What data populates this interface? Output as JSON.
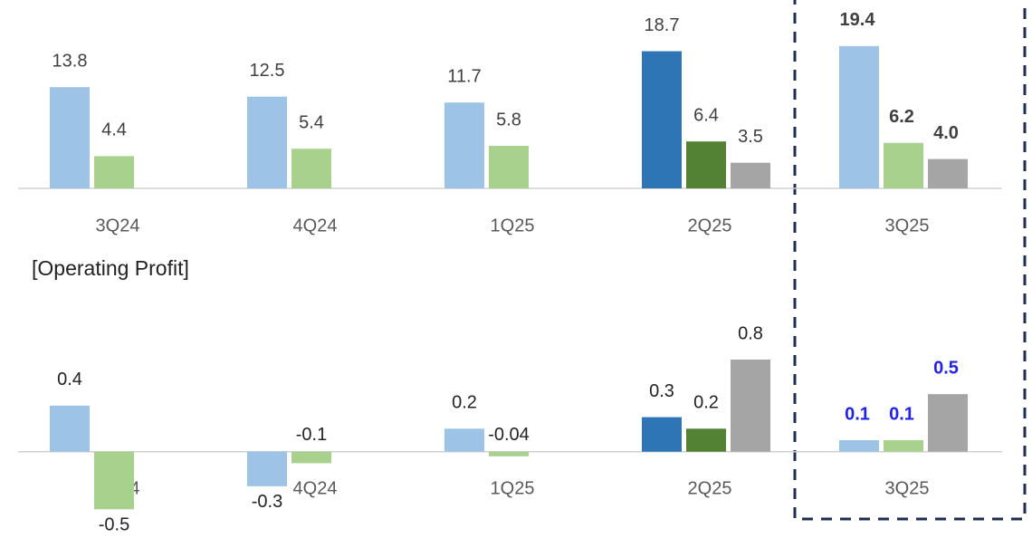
{
  "chart_data": [
    {
      "type": "bar",
      "categories": [
        "3Q24",
        "4Q24",
        "1Q25",
        "2Q25",
        "3Q25"
      ],
      "series": [
        {
          "colors": [
            "#9dc3e6",
            "#9dc3e6",
            "#9dc3e6",
            "#2e75b6",
            "#9dc3e6"
          ],
          "values": [
            13.8,
            12.5,
            11.7,
            18.7,
            19.4
          ],
          "value_labels": [
            "13.8",
            "12.5",
            "11.7",
            "18.7",
            "19.4"
          ]
        },
        {
          "colors": [
            "#a9d18e",
            "#a9d18e",
            "#a9d18e",
            "#548235",
            "#a9d18e"
          ],
          "values": [
            4.4,
            5.4,
            5.8,
            6.4,
            6.2
          ],
          "value_labels": [
            "4.4",
            "5.4",
            "5.8",
            "6.4",
            "6.2"
          ]
        },
        {
          "colors": [
            "#a5a5a5",
            "#a5a5a5",
            "#a5a5a5",
            "#a5a5a5",
            "#a5a5a5"
          ],
          "values": [
            null,
            null,
            null,
            3.5,
            4.0
          ],
          "value_labels": [
            null,
            null,
            null,
            "3.5",
            "4.0"
          ]
        }
      ],
      "ylim": [
        0,
        20
      ],
      "highlight_label_color": "#404040"
    },
    {
      "type": "bar",
      "title": "[Operating Profit]",
      "categories": [
        "3Q24",
        "4Q24",
        "1Q25",
        "2Q25",
        "3Q25"
      ],
      "series": [
        {
          "colors": [
            "#9dc3e6",
            "#9dc3e6",
            "#9dc3e6",
            "#2e75b6",
            "#9dc3e6"
          ],
          "values": [
            0.4,
            -0.3,
            0.2,
            0.3,
            0.1
          ],
          "value_labels": [
            "0.4",
            "-0.3",
            "0.2",
            "0.3",
            "0.1"
          ]
        },
        {
          "colors": [
            "#a9d18e",
            "#a9d18e",
            "#a9d18e",
            "#548235",
            "#a9d18e"
          ],
          "values": [
            -0.5,
            -0.1,
            -0.04,
            0.2,
            0.1
          ],
          "value_labels": [
            "-0.5",
            "-0.1",
            "-0.04",
            "0.2",
            "0.1"
          ]
        },
        {
          "colors": [
            "#a5a5a5",
            "#a5a5a5",
            "#a5a5a5",
            "#a5a5a5",
            "#a5a5a5"
          ],
          "values": [
            null,
            null,
            null,
            0.8,
            0.5
          ],
          "value_labels": [
            null,
            null,
            null,
            "0.8",
            "0.5"
          ]
        }
      ],
      "ylim": [
        -0.6,
        0.8
      ],
      "highlight_label_color": "#2323e6"
    }
  ]
}
